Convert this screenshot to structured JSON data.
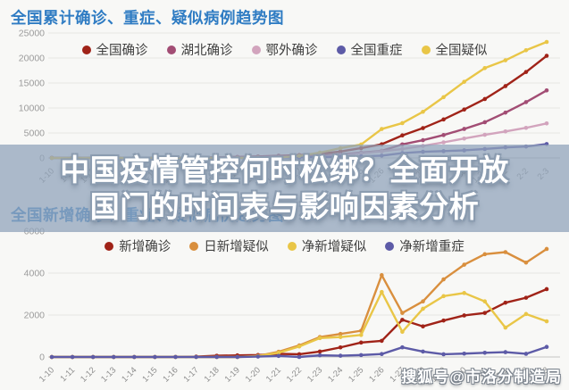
{
  "page": {
    "background_color": "#f8f8f6",
    "title_color": "#2f7cc3"
  },
  "overlay": {
    "headline_line1": "中国疫情管控何时松绑？全面开放",
    "headline_line2": "国门的时间表与影响因素分析",
    "band_color": "rgba(144,163,186,0.74)",
    "text_color": "#ffffff"
  },
  "watermark": {
    "text": "搜狐号@市洛分制造局"
  },
  "chart_data": [
    {
      "type": "line",
      "title": "全国累计确诊、重症、疑似病例趋势图",
      "xlabel": "",
      "ylabel": "",
      "x": [
        "1-10",
        "1-11",
        "1-12",
        "1-13",
        "1-14",
        "1-15",
        "1-16",
        "1-17",
        "1-18",
        "1-19",
        "1-20",
        "1-21",
        "1-22",
        "1-23",
        "1-24",
        "1-25",
        "1-26",
        "1-27",
        "1-28",
        "1-29",
        "1-30",
        "1-31",
        "2-1",
        "2-2",
        "2-3"
      ],
      "ylim": [
        0,
        25000
      ],
      "yticks": [
        0,
        5000,
        10000,
        15000,
        20000,
        25000
      ],
      "grid": true,
      "legend_position": "top-center",
      "series": [
        {
          "name": "全国确诊",
          "color": "#a02318",
          "values": [
            41,
            41,
            41,
            41,
            41,
            41,
            45,
            62,
            121,
            198,
            291,
            440,
            571,
            830,
            1287,
            1975,
            2744,
            4515,
            5974,
            7711,
            9692,
            11791,
            14380,
            17205,
            20438
          ]
        },
        {
          "name": "湖北确诊",
          "color": "#a24d74",
          "values": [
            41,
            41,
            41,
            41,
            41,
            41,
            45,
            62,
            121,
            198,
            270,
            375,
            444,
            549,
            729,
            1052,
            1423,
            2714,
            3554,
            4586,
            5806,
            7153,
            9074,
            11177,
            13522
          ]
        },
        {
          "name": "鄂外确诊",
          "color": "#d2a4bd",
          "values": [
            0,
            0,
            0,
            0,
            0,
            0,
            0,
            0,
            0,
            0,
            21,
            65,
            127,
            281,
            558,
            923,
            1321,
            1801,
            2420,
            3125,
            3886,
            4638,
            5306,
            6028,
            6916
          ]
        },
        {
          "name": "全国重症",
          "color": "#5d5ba7",
          "values": [
            0,
            0,
            0,
            0,
            0,
            0,
            0,
            0,
            0,
            0,
            51,
            102,
            95,
            177,
            237,
            324,
            461,
            976,
            1239,
            1370,
            1527,
            1795,
            2110,
            2296,
            2788
          ]
        },
        {
          "name": "全国疑似",
          "color": "#e9c647",
          "values": [
            0,
            0,
            0,
            0,
            0,
            0,
            0,
            0,
            0,
            0,
            54,
            100,
            400,
            1072,
            1965,
            2684,
            5794,
            6973,
            9239,
            12167,
            15238,
            17988,
            19544,
            21558,
            23214
          ]
        }
      ]
    },
    {
      "type": "line",
      "title": "全国新增确诊、重症、疑似病例趋势图",
      "xlabel": "",
      "ylabel": "",
      "x": [
        "1-10",
        "1-11",
        "1-12",
        "1-13",
        "1-14",
        "1-15",
        "1-16",
        "1-17",
        "1-18",
        "1-19",
        "1-20",
        "1-21",
        "1-22",
        "1-23",
        "1-24",
        "1-25",
        "1-26",
        "1-27",
        "1-28",
        "1-29",
        "1-30",
        "1-31",
        "2-1",
        "2-2",
        "2-3"
      ],
      "ylim": [
        0,
        6000
      ],
      "yticks": [
        0,
        2000,
        4000,
        6000
      ],
      "grid": true,
      "legend_position": "top-center",
      "series": [
        {
          "name": "新增确诊",
          "color": "#a02318",
          "values": [
            0,
            0,
            0,
            0,
            0,
            0,
            4,
            17,
            59,
            77,
            93,
            149,
            131,
            259,
            457,
            688,
            769,
            1771,
            1459,
            1737,
            1981,
            2099,
            2589,
            2825,
            3235
          ]
        },
        {
          "name": "日新增疑似",
          "color": "#d98f3e",
          "values": [
            0,
            0,
            0,
            0,
            0,
            0,
            0,
            0,
            0,
            0,
            50,
            250,
            550,
            950,
            1100,
            1250,
            3900,
            2100,
            2650,
            3700,
            4400,
            4900,
            5000,
            4500,
            5150
          ]
        },
        {
          "name": "净新增疑似",
          "color": "#e9c647",
          "values": [
            0,
            0,
            0,
            0,
            0,
            0,
            0,
            0,
            0,
            0,
            40,
            200,
            500,
            900,
            950,
            1050,
            3100,
            1200,
            2300,
            2900,
            3050,
            2650,
            1400,
            2050,
            1700
          ]
        },
        {
          "name": "净新增重症",
          "color": "#5d5ba7",
          "values": [
            0,
            0,
            0,
            0,
            0,
            0,
            0,
            0,
            0,
            0,
            20,
            50,
            0,
            80,
            60,
            90,
            140,
            460,
            260,
            130,
            160,
            200,
            230,
            150,
            480
          ]
        }
      ]
    }
  ]
}
